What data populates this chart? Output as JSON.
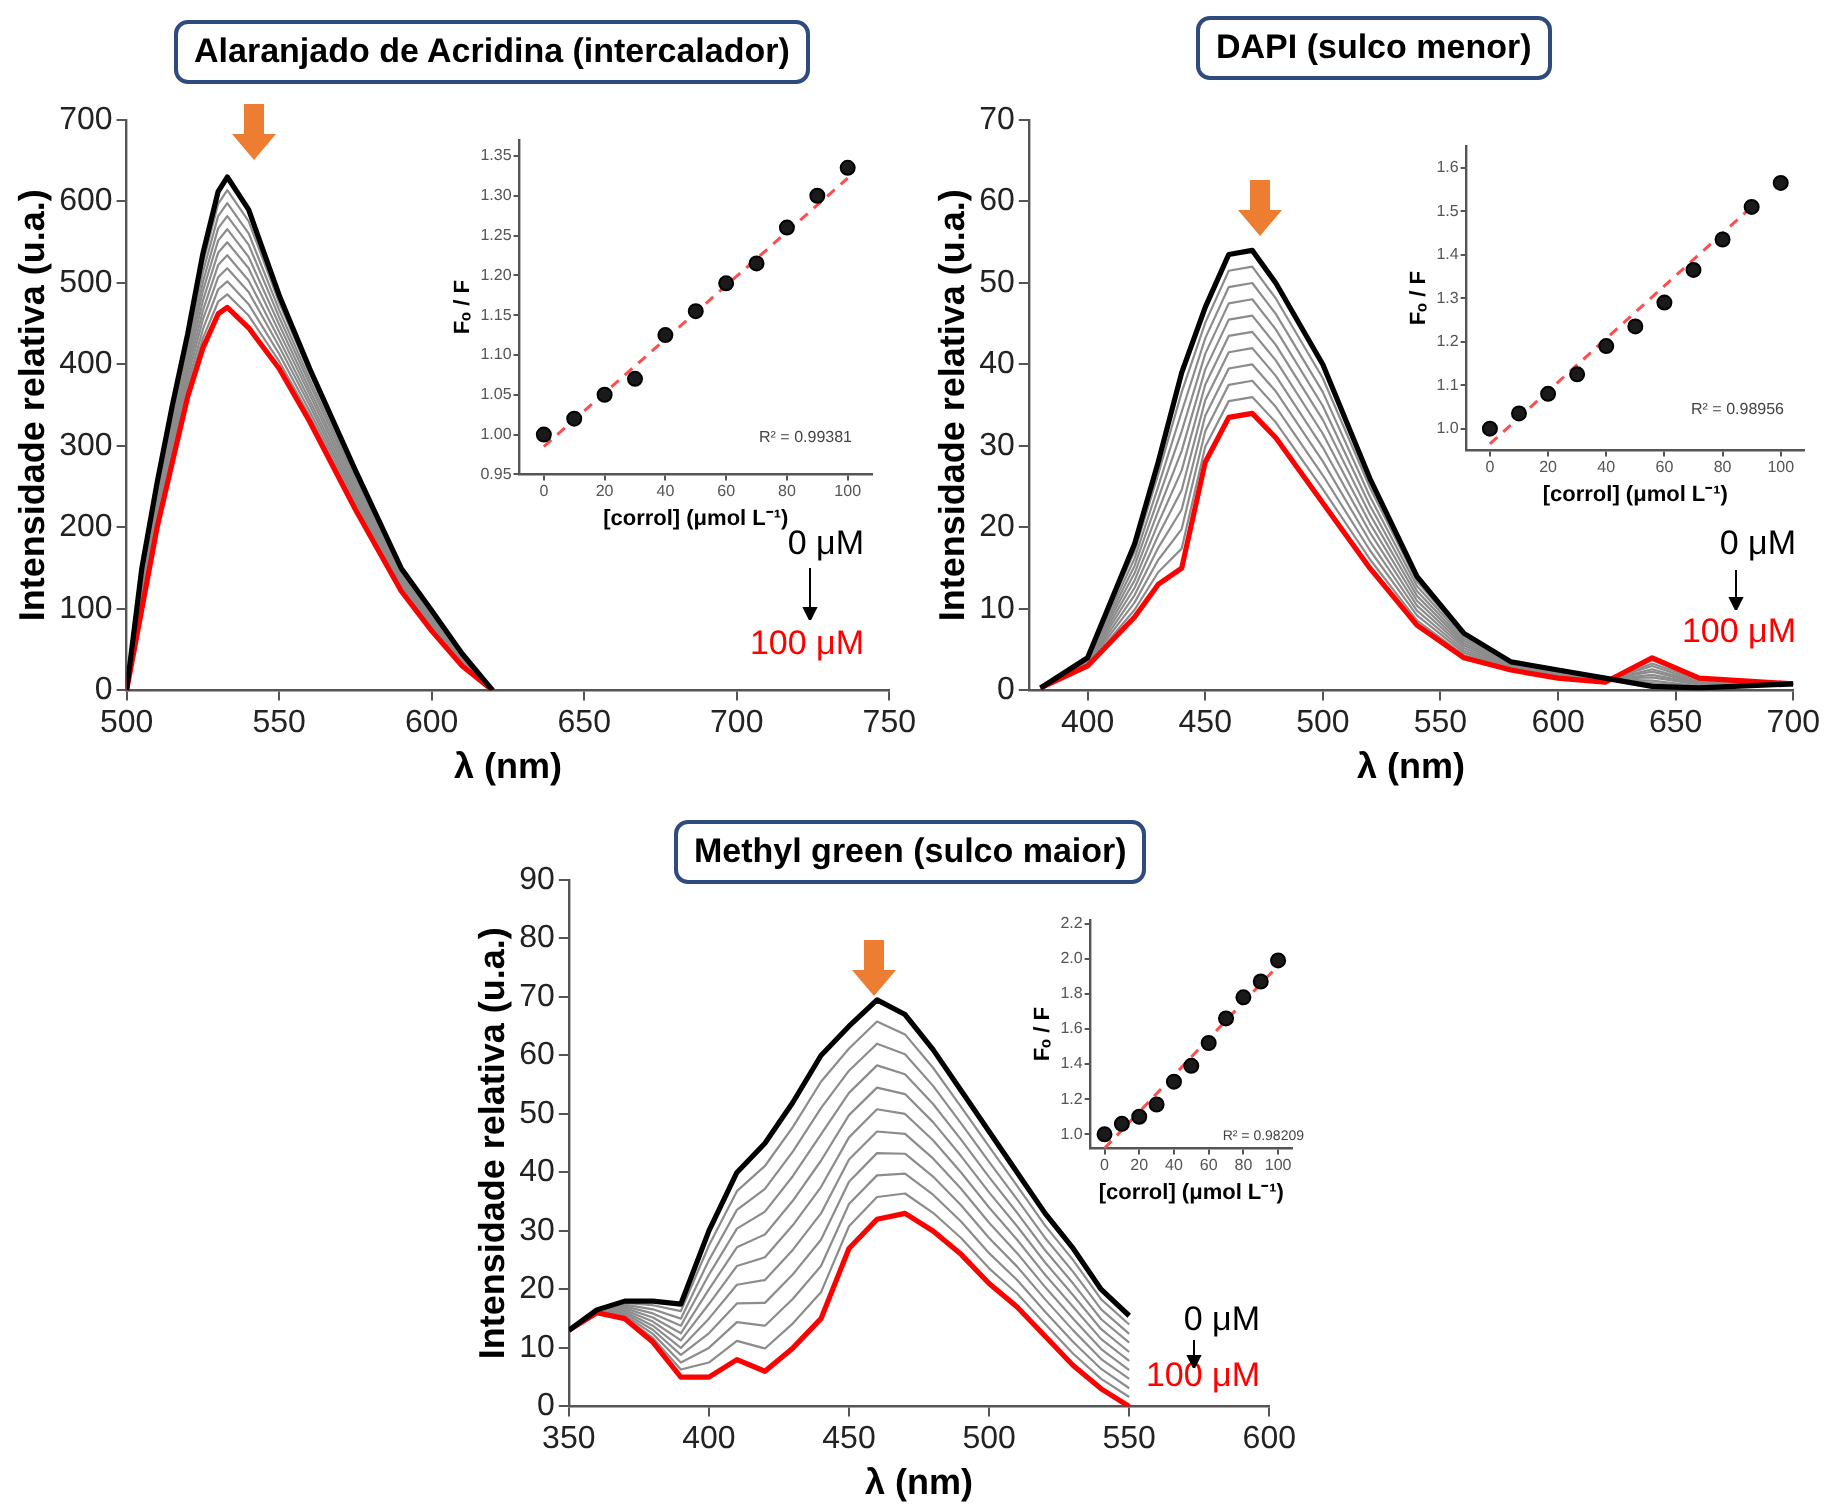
{
  "chart_data": [
    {
      "type": "line",
      "title": "Alaranjado de Acridina (intercalador)",
      "xlabel": "λ (nm)",
      "ylabel": "Intensidade relativa (u.a.)",
      "x": [
        500,
        505,
        510,
        515,
        520,
        525,
        530,
        533,
        540,
        550,
        560,
        575,
        590,
        600,
        610,
        620
      ],
      "series": [
        {
          "color": "#000000",
          "values": [
            0,
            150,
            255,
            350,
            437,
            536,
            612,
            630,
            590,
            485,
            395,
            270,
            150,
            98,
            45,
            0
          ]
        },
        {
          "color": "#8c8c8c",
          "values": [
            0,
            145,
            250,
            343,
            429,
            524,
            597,
            614,
            576,
            476,
            389,
            265,
            147,
            96,
            44,
            0
          ]
        },
        {
          "color": "#8c8c8c",
          "values": [
            0,
            140,
            244,
            336,
            422,
            513,
            582,
            598,
            561,
            467,
            382,
            260,
            144,
            93,
            42,
            0
          ]
        },
        {
          "color": "#8c8c8c",
          "values": [
            0,
            135,
            239,
            329,
            414,
            501,
            567,
            582,
            547,
            458,
            376,
            256,
            142,
            91,
            41,
            0
          ]
        },
        {
          "color": "#8c8c8c",
          "values": [
            0,
            130,
            233,
            322,
            406,
            490,
            552,
            566,
            532,
            449,
            369,
            251,
            139,
            88,
            39,
            0
          ]
        },
        {
          "color": "#8c8c8c",
          "values": [
            0,
            125,
            228,
            315,
            399,
            478,
            537,
            550,
            518,
            440,
            363,
            246,
            136,
            86,
            38,
            0
          ]
        },
        {
          "color": "#8c8c8c",
          "values": [
            0,
            120,
            222,
            308,
            391,
            466,
            522,
            534,
            503,
            431,
            356,
            241,
            133,
            83,
            36,
            0
          ]
        },
        {
          "color": "#8c8c8c",
          "values": [
            0,
            115,
            217,
            301,
            383,
            455,
            507,
            518,
            489,
            422,
            350,
            236,
            130,
            81,
            35,
            0
          ]
        },
        {
          "color": "#8c8c8c",
          "values": [
            0,
            110,
            211,
            294,
            375,
            443,
            492,
            502,
            474,
            413,
            343,
            232,
            128,
            78,
            33,
            0
          ]
        },
        {
          "color": "#8c8c8c",
          "values": [
            0,
            105,
            206,
            287,
            368,
            432,
            477,
            486,
            460,
            404,
            337,
            227,
            125,
            76,
            32,
            0
          ]
        },
        {
          "color": "#ff0000",
          "values": [
            0,
            100,
            200,
            280,
            360,
            420,
            462,
            470,
            445,
            395,
            330,
            222,
            122,
            73,
            30,
            0
          ]
        }
      ],
      "xlim": [
        500,
        750
      ],
      "xticks": [
        500,
        550,
        600,
        650,
        700,
        750
      ],
      "ylim": [
        0,
        700
      ],
      "yticks": [
        0,
        100,
        200,
        300,
        400,
        500,
        600,
        700
      ],
      "grid": false,
      "legend": false,
      "marker": "none",
      "line_style": "solid",
      "annotations": [
        "0 μM",
        "100 μM"
      ]
    },
    {
      "type": "scatter",
      "xlabel": "[corrol] (μmol L⁻¹)",
      "ylabel": "Fₒ / F",
      "x": [
        0,
        10,
        20,
        30,
        40,
        50,
        60,
        70,
        80,
        90,
        100
      ],
      "series": [
        {
          "color": "#1a1a1a",
          "values": [
            1.0,
            1.02,
            1.05,
            1.07,
            1.125,
            1.155,
            1.19,
            1.215,
            1.26,
            1.3,
            1.335
          ]
        },
        {
          "type": "line",
          "color": "#ff4d4d",
          "marker": "none",
          "x": [
            0,
            100
          ],
          "values": [
            0.985,
            1.322
          ]
        }
      ],
      "xlim": [
        -8,
        108
      ],
      "xticks": [
        0,
        20,
        40,
        60,
        80,
        100
      ],
      "ylim": [
        0.95,
        1.37
      ],
      "yticks": [
        0.95,
        {
          "value": 1,
          "label": "1.00"
        },
        1.05,
        {
          "value": 1.1,
          "label": "1.10"
        },
        1.15,
        {
          "value": 1.2,
          "label": "1.20"
        },
        1.25,
        {
          "value": 1.3,
          "label": "1.30"
        },
        1.35
      ],
      "grid": false,
      "legend": false,
      "marker": "circle",
      "line_style": "dashed",
      "annotations": [
        "R² = 0.99381"
      ]
    },
    {
      "type": "line",
      "title": "DAPI (sulco menor)",
      "xlabel": "λ (nm)",
      "ylabel": "Intensidade relativa (u.a.)",
      "x": [
        380,
        400,
        420,
        430,
        440,
        450,
        460,
        470,
        480,
        500,
        520,
        540,
        560,
        580,
        600,
        620,
        640,
        660,
        700
      ],
      "series": [
        {
          "color": "#000000",
          "values": [
            0.3,
            4,
            18,
            28,
            39,
            47,
            53.5,
            54,
            50,
            40,
            26,
            14,
            7,
            3.5,
            2.5,
            1.5,
            0.5,
            0.3,
            0.8
          ]
        },
        {
          "color": "#8c8c8c",
          "values": [
            0.3,
            3.9,
            17.1,
            26.5,
            36.6,
            45.1,
            51.5,
            52,
            48.1,
            38.3,
            24.9,
            13.4,
            6.7,
            3.4,
            2.4,
            1.5,
            0.9,
            0.4,
            0.8
          ]
        },
        {
          "color": "#8c8c8c",
          "values": [
            0.3,
            3.8,
            16.2,
            25,
            34.2,
            43.2,
            49.5,
            50,
            46.2,
            36.6,
            23.8,
            12.8,
            6.4,
            3.3,
            2.3,
            1.4,
            1.2,
            0.5,
            0.8
          ]
        },
        {
          "color": "#8c8c8c",
          "values": [
            0.3,
            3.7,
            15.3,
            23.5,
            31.8,
            41.3,
            47.5,
            48,
            44.3,
            34.9,
            22.7,
            12.2,
            6.1,
            3.2,
            2.2,
            1.4,
            1.6,
            0.7,
            0.8
          ]
        },
        {
          "color": "#8c8c8c",
          "values": [
            0.3,
            3.6,
            14.4,
            22,
            29.4,
            39.4,
            45.5,
            46,
            42.4,
            33.2,
            21.6,
            11.6,
            5.8,
            3.1,
            2.1,
            1.3,
            1.9,
            0.8,
            0.8
          ]
        },
        {
          "color": "#8c8c8c",
          "values": [
            0.3,
            3.5,
            13.5,
            20.5,
            27,
            37.5,
            43.5,
            44,
            40.5,
            31.5,
            20.5,
            11,
            5.5,
            3,
            2,
            1.3,
            2.3,
            0.9,
            0.8
          ]
        },
        {
          "color": "#8c8c8c",
          "values": [
            0.3,
            3.4,
            12.6,
            19,
            24.6,
            35.6,
            41.5,
            42,
            38.6,
            29.8,
            19.4,
            10.4,
            5.2,
            2.9,
            1.9,
            1.2,
            2.6,
            1,
            0.8
          ]
        },
        {
          "color": "#8c8c8c",
          "values": [
            0.3,
            3.3,
            11.7,
            17.5,
            22.2,
            33.7,
            39.5,
            40,
            36.7,
            28.1,
            18.3,
            9.8,
            4.9,
            2.8,
            1.8,
            1.2,
            3,
            1.1,
            0.8
          ]
        },
        {
          "color": "#8c8c8c",
          "values": [
            0.3,
            3.2,
            10.8,
            16,
            19.8,
            31.8,
            37.5,
            38,
            34.8,
            26.4,
            17.2,
            9.2,
            4.6,
            2.7,
            1.7,
            1.1,
            3.3,
            1.3,
            0.8
          ]
        },
        {
          "color": "#8c8c8c",
          "values": [
            0.3,
            3.1,
            9.9,
            14.5,
            17.4,
            29.9,
            35.5,
            36,
            32.9,
            24.7,
            16.1,
            8.6,
            4.3,
            2.6,
            1.6,
            1.1,
            3.7,
            1.4,
            0.8
          ]
        },
        {
          "color": "#ff0000",
          "values": [
            0.3,
            3,
            9,
            13,
            15,
            28,
            33.5,
            34,
            31,
            23,
            15,
            8,
            4,
            2.5,
            1.5,
            1,
            4,
            1.5,
            0.8
          ]
        }
      ],
      "xlim": [
        375,
        700
      ],
      "xticks": [
        400,
        450,
        500,
        550,
        600,
        650,
        700
      ],
      "ylim": [
        0,
        70
      ],
      "yticks": [
        0,
        10,
        20,
        30,
        40,
        50,
        60,
        70
      ],
      "grid": false,
      "legend": false,
      "marker": "none",
      "line_style": "solid",
      "annotations": [
        "0 μM",
        "100 μM"
      ]
    },
    {
      "type": "scatter",
      "xlabel": "[corrol] (μmol L⁻¹)",
      "ylabel": "Fₒ / F",
      "x": [
        0,
        10,
        20,
        30,
        40,
        50,
        60,
        70,
        80,
        90,
        100
      ],
      "series": [
        {
          "color": "#1a1a1a",
          "values": [
            1.0,
            1.035,
            1.08,
            1.125,
            1.19,
            1.235,
            1.29,
            1.365,
            1.435,
            1.51,
            1.565
          ]
        },
        {
          "type": "line",
          "color": "#ff4d4d",
          "marker": "none",
          "x": [
            0,
            90
          ],
          "values": [
            0.965,
            1.51
          ]
        }
      ],
      "xlim": [
        -8,
        108
      ],
      "xticks": [
        0,
        20,
        40,
        60,
        80,
        100
      ],
      "ylim": [
        0.95,
        1.65
      ],
      "yticks": [
        {
          "value": 1,
          "label": "1.0"
        },
        1.1,
        1.2,
        1.3,
        1.4,
        1.5,
        1.6
      ],
      "grid": false,
      "legend": false,
      "marker": "circle",
      "line_style": "dashed",
      "annotations": [
        "R² = 0.98956"
      ]
    },
    {
      "type": "line",
      "title": "Methyl green (sulco maior)",
      "xlabel": "λ (nm)",
      "ylabel": "Intensidade relativa (u.a.)",
      "x": [
        350,
        360,
        370,
        380,
        390,
        400,
        410,
        420,
        430,
        440,
        450,
        460,
        470,
        480,
        490,
        500,
        510,
        520,
        530,
        540,
        550
      ],
      "series": [
        {
          "color": "#000000",
          "values": [
            13,
            16.5,
            18,
            18,
            17.5,
            30,
            40,
            45,
            52,
            60,
            65,
            69.5,
            67,
            61,
            54,
            47,
            40,
            33,
            27,
            20,
            15.5
          ]
        },
        {
          "color": "#8c8c8c",
          "values": [
            13,
            16.5,
            17.7,
            17.3,
            16.3,
            27.5,
            36.8,
            41.1,
            47.8,
            55.5,
            61.2,
            65.8,
            63.6,
            57.9,
            51.2,
            44.4,
            37.7,
            30.9,
            25,
            18.3,
            14
          ]
        },
        {
          "color": "#8c8c8c",
          "values": [
            13,
            16.4,
            17.4,
            16.6,
            15,
            25,
            33.6,
            37.2,
            43.6,
            51,
            57.4,
            62,
            60.2,
            54.8,
            48.4,
            41.8,
            35.4,
            28.8,
            23,
            16.6,
            12.4
          ]
        },
        {
          "color": "#8c8c8c",
          "values": [
            13,
            16.4,
            17.1,
            15.9,
            13.8,
            22.5,
            30.4,
            33.3,
            39.4,
            46.5,
            53.6,
            58.3,
            56.8,
            51.7,
            45.6,
            39.2,
            33.1,
            26.7,
            21,
            14.9,
            10.9
          ]
        },
        {
          "color": "#8c8c8c",
          "values": [
            13,
            16.3,
            16.8,
            15.2,
            12.5,
            20,
            27.2,
            29.4,
            35.2,
            42,
            49.8,
            54.5,
            53.4,
            48.6,
            42.8,
            36.6,
            30.8,
            24.6,
            19,
            13.2,
            9.3
          ]
        },
        {
          "color": "#8c8c8c",
          "values": [
            13,
            16.3,
            16.5,
            14.5,
            11.3,
            17.5,
            24,
            25.5,
            31,
            37.5,
            46,
            50.8,
            50,
            45.5,
            40,
            34,
            28.5,
            22.5,
            17,
            11.5,
            7.8
          ]
        },
        {
          "color": "#8c8c8c",
          "values": [
            13,
            16.2,
            16.2,
            13.8,
            10,
            15,
            20.8,
            21.6,
            26.8,
            33,
            42.2,
            47,
            46.6,
            42.4,
            37.2,
            31.4,
            26.2,
            20.4,
            15,
            9.8,
            6.2
          ]
        },
        {
          "color": "#8c8c8c",
          "values": [
            13,
            16.2,
            15.9,
            13.1,
            8.8,
            12.5,
            17.6,
            17.7,
            22.6,
            28.5,
            38.4,
            43.3,
            43.2,
            39.3,
            34.4,
            28.8,
            23.9,
            18.3,
            13,
            8.1,
            4.7
          ]
        },
        {
          "color": "#8c8c8c",
          "values": [
            13,
            16.1,
            15.6,
            12.4,
            7.5,
            10,
            14.4,
            13.8,
            18.4,
            24,
            34.6,
            39.5,
            39.8,
            36.2,
            31.6,
            26.2,
            21.6,
            16.2,
            11,
            6.4,
            3.1
          ]
        },
        {
          "color": "#8c8c8c",
          "values": [
            13,
            16.1,
            15.3,
            11.7,
            6.3,
            7.5,
            11.2,
            9.9,
            14.2,
            19.5,
            30.8,
            35.8,
            36.4,
            33.1,
            28.8,
            23.6,
            19.3,
            14.1,
            9,
            4.7,
            1.6
          ]
        },
        {
          "color": "#ff0000",
          "values": [
            13,
            16,
            15,
            11,
            5,
            5,
            8,
            6,
            10,
            15,
            27,
            32,
            33,
            30,
            26,
            21,
            17,
            12,
            7,
            3,
            0
          ]
        }
      ],
      "xlim": [
        350,
        600
      ],
      "xticks": [
        350,
        400,
        450,
        500,
        550,
        600
      ],
      "ylim": [
        0,
        90
      ],
      "yticks": [
        0,
        10,
        20,
        30,
        40,
        50,
        60,
        70,
        80,
        90
      ],
      "grid": false,
      "legend": false,
      "marker": "none",
      "line_style": "solid",
      "annotations": [
        "0 μM",
        "100 μM"
      ]
    },
    {
      "type": "scatter",
      "xlabel": "[corrol] (μmol L⁻¹)",
      "ylabel": "Fₒ / F",
      "x": [
        0,
        10,
        20,
        30,
        40,
        50,
        60,
        70,
        80,
        90,
        100
      ],
      "series": [
        {
          "color": "#1a1a1a",
          "values": [
            1.0,
            1.06,
            1.1,
            1.17,
            1.3,
            1.39,
            1.52,
            1.66,
            1.78,
            1.87,
            1.99
          ]
        },
        {
          "type": "line",
          "color": "#ff4d4d",
          "marker": "none",
          "x": [
            0,
            100
          ],
          "values": [
            0.92,
            1.96
          ]
        }
      ],
      "xlim": [
        -8,
        108
      ],
      "xticks": [
        0,
        20,
        40,
        60,
        80,
        100
      ],
      "ylim": [
        0.92,
        2.22
      ],
      "yticks": [
        {
          "value": 1,
          "label": "1.0"
        },
        1.2,
        1.4,
        1.6,
        1.8,
        {
          "value": 2,
          "label": "2.0"
        },
        2.2
      ],
      "grid": false,
      "legend": false,
      "marker": "circle",
      "line_style": "dashed",
      "annotations": [
        "R² = 0.98209"
      ]
    }
  ]
}
